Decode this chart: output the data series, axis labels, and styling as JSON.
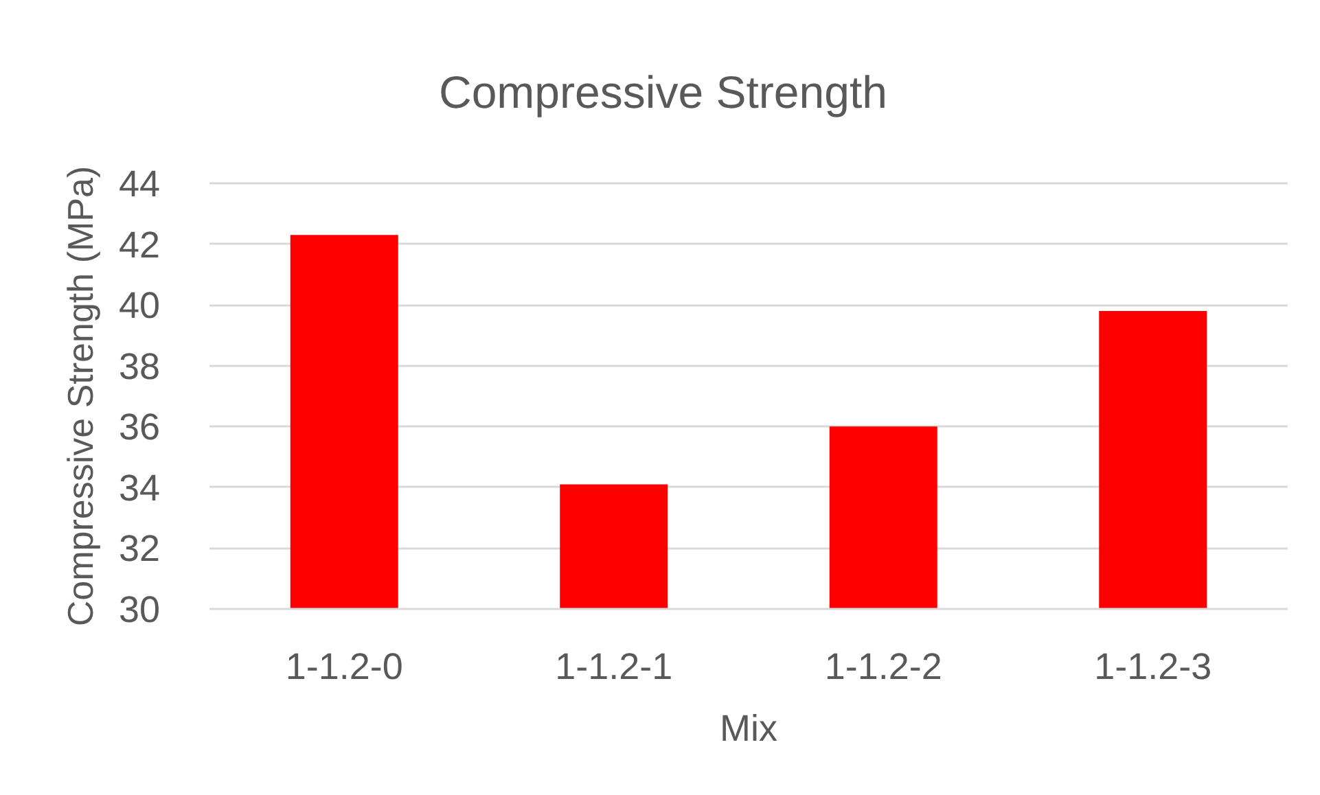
{
  "chart_data": {
    "type": "bar",
    "title": "Compressive Strength",
    "xlabel": "Mix",
    "ylabel": "Compressive Strength (MPa)",
    "categories": [
      "1-1.2-0",
      "1-1.2-1",
      "1-1.2-2",
      "1-1.2-3"
    ],
    "values": [
      42.3,
      34.1,
      36.0,
      39.8
    ],
    "color": "#ff0000",
    "ylim": [
      30,
      44
    ],
    "yticks": [
      30,
      32,
      34,
      36,
      38,
      40,
      42,
      44
    ],
    "grid": "y"
  }
}
